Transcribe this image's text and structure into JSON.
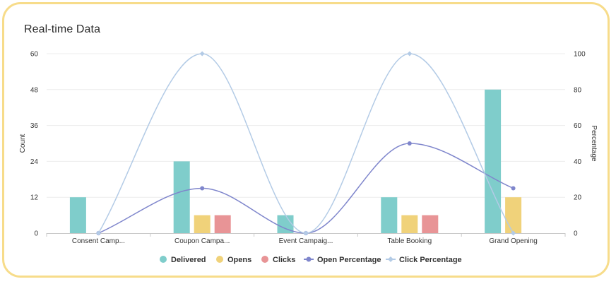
{
  "header": {
    "title": "Real-time Data"
  },
  "colors": {
    "delivered": "#7fcdcb",
    "opens": "#f0d27a",
    "clicks": "#e89496",
    "open_percentage": "#7f86cc",
    "click_percentage": "#b3cbe6",
    "grid": "#ececec",
    "border": "#f7dc8a"
  },
  "chart_data": {
    "type": "bar",
    "categories": [
      "Consent Camp...",
      "Coupon Campa...",
      "Event Campaig...",
      "Table Booking",
      "Grand Opening"
    ],
    "series": [
      {
        "name": "Delivered",
        "type": "bar",
        "axis": "left",
        "values": [
          12,
          24,
          6,
          12,
          48
        ]
      },
      {
        "name": "Opens",
        "type": "bar",
        "axis": "left",
        "values": [
          0,
          6,
          0,
          6,
          12
        ]
      },
      {
        "name": "Clicks",
        "type": "bar",
        "axis": "left",
        "values": [
          0,
          6,
          0,
          6,
          0
        ]
      },
      {
        "name": "Open Percentage",
        "type": "line",
        "axis": "right",
        "values": [
          0,
          25,
          0,
          50,
          25
        ]
      },
      {
        "name": "Click Percentage",
        "type": "line",
        "axis": "right",
        "values": [
          0,
          100,
          0,
          100,
          0
        ]
      }
    ],
    "ylabel": "Count",
    "y2label": "Percentage",
    "ylim": [
      0,
      60
    ],
    "yticks": [
      "0",
      "12",
      "24",
      "36",
      "48",
      "60"
    ],
    "y2lim": [
      0,
      100
    ],
    "y2ticks": [
      "0",
      "20",
      "40",
      "60",
      "80",
      "100"
    ],
    "grid": true,
    "legend_position": "bottom"
  }
}
